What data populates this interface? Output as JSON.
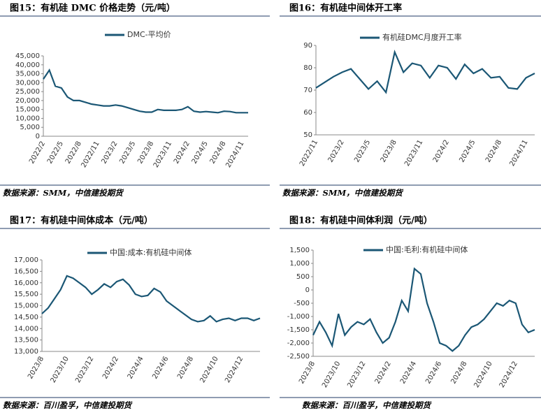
{
  "chart_data": [
    {
      "type": "line",
      "title": "图15：有机硅 DMC 价格走势（元/吨）",
      "source": "数据来源：SMM，中信建投期货",
      "x": [
        "2022/2",
        null,
        null,
        "2022/5",
        null,
        null,
        "2022/8",
        null,
        null,
        "2022/11",
        null,
        null,
        "2023/2",
        null,
        null,
        "2023/5",
        null,
        null,
        "2023/8",
        null,
        null,
        "2023/11",
        null,
        null,
        "2024/2",
        null,
        null,
        "2024/5",
        null,
        null,
        "2024/8",
        null,
        null,
        "2024/11",
        null
      ],
      "series": [
        {
          "name": "DMC-平均价",
          "color": "#1b5775",
          "values": [
            32000,
            37000,
            28000,
            27000,
            22000,
            20000,
            20000,
            19000,
            18000,
            17500,
            17000,
            17000,
            17500,
            17000,
            16000,
            15000,
            14000,
            13500,
            13500,
            15000,
            14500,
            14500,
            14500,
            15000,
            16500,
            14000,
            13500,
            13800,
            13500,
            13200,
            14000,
            13800,
            13200,
            13200,
            13200
          ]
        }
      ],
      "ylim": [
        0,
        45000
      ],
      "yticks": [
        0,
        {
          "value": 5000,
          "label": "5,000"
        },
        {
          "value": 10000,
          "label": "10,000"
        },
        {
          "value": 15000,
          "label": "15,000"
        },
        {
          "value": 20000,
          "label": "20,000"
        },
        {
          "value": 25000,
          "label": "25,000"
        },
        {
          "value": 30000,
          "label": "30,000"
        },
        {
          "value": 35000,
          "label": "35,000"
        },
        {
          "value": 40000,
          "label": "40,000"
        },
        {
          "value": 45000,
          "label": "45,000"
        }
      ],
      "grid": false
    },
    {
      "type": "line",
      "title": "图16：有机硅中间体开工率",
      "source": "数据来源：SMM，中信建投期货",
      "x": [
        "2022/11",
        null,
        null,
        "2023/2",
        null,
        null,
        "2023/5",
        null,
        null,
        "2023/8",
        null,
        null,
        "2023/11",
        null,
        null,
        "2024/2",
        null,
        null,
        "2024/5",
        null,
        null,
        "2024/8",
        null,
        null,
        "2024/11",
        null
      ],
      "series": [
        {
          "name": "有机硅DMC月度开工率",
          "color": "#1b5775",
          "values": [
            71,
            73.5,
            76,
            78,
            79.5,
            75,
            70.5,
            74,
            69,
            87,
            78,
            82,
            81,
            75.5,
            81,
            80,
            75,
            81.5,
            77.5,
            79.5,
            75.5,
            76,
            71,
            70.5,
            75.5,
            77.5
          ]
        }
      ],
      "ylim": [
        50,
        90
      ],
      "yticks": [
        50,
        60,
        70,
        80,
        90
      ],
      "grid": false
    },
    {
      "type": "line",
      "title": "图17：有机硅中间体成本（元/吨）",
      "source": "数据来源：百川盈孚，中信建投期货",
      "x": [
        "2023/8",
        null,
        null,
        null,
        "2023/10",
        null,
        null,
        null,
        "2023/12",
        null,
        null,
        null,
        "2024/2",
        null,
        null,
        null,
        "2024/4",
        null,
        null,
        null,
        "2024/6",
        null,
        null,
        null,
        "2024/8",
        null,
        null,
        null,
        "2024/10",
        null,
        null,
        null,
        "2024/12",
        null,
        null,
        null
      ],
      "series": [
        {
          "name": "中国:成本:有机硅中间体",
          "color": "#1b5775",
          "values": [
            14650,
            14900,
            15300,
            15700,
            16300,
            16200,
            16000,
            15800,
            15500,
            15700,
            15950,
            15800,
            16050,
            16150,
            15900,
            15500,
            15400,
            15450,
            15750,
            15600,
            15200,
            15000,
            14800,
            14600,
            14400,
            14300,
            14350,
            14550,
            14300,
            14400,
            14450,
            14350,
            14450,
            14450,
            14350,
            14450
          ]
        }
      ],
      "ylim": [
        13000,
        17000
      ],
      "yticks": [
        {
          "value": 13000,
          "label": "13,000"
        },
        {
          "value": 13500,
          "label": "13,500"
        },
        {
          "value": 14000,
          "label": "14,000"
        },
        {
          "value": 14500,
          "label": "14,500"
        },
        {
          "value": 15000,
          "label": "15,000"
        },
        {
          "value": 15500,
          "label": "15,500"
        },
        {
          "value": 16000,
          "label": "16,000"
        },
        {
          "value": 16500,
          "label": "16,500"
        },
        {
          "value": 17000,
          "label": "17,000"
        }
      ],
      "grid": false
    },
    {
      "type": "line",
      "title": "图18：有机硅中间体利润（元/吨）",
      "source": "数据来源：百川盈孚，中信建投期货",
      "x": [
        "2023/8",
        null,
        null,
        null,
        "2023/10",
        null,
        null,
        null,
        "2023/12",
        null,
        null,
        null,
        "2024/2",
        null,
        null,
        null,
        "2024/4",
        null,
        null,
        null,
        "2024/6",
        null,
        null,
        null,
        "2024/8",
        null,
        null,
        null,
        "2024/10",
        null,
        null,
        null,
        "2024/12",
        null,
        null,
        null
      ],
      "series": [
        {
          "name": "中国:毛利:有机硅中间体",
          "color": "#1b5775",
          "values": [
            -1700,
            -1200,
            -1600,
            -2100,
            -900,
            -1700,
            -1400,
            -1200,
            -1300,
            -1100,
            -1600,
            -2000,
            -1800,
            -1200,
            -400,
            -800,
            800,
            600,
            -500,
            -1200,
            -2000,
            -2100,
            -2300,
            -2100,
            -1700,
            -1400,
            -1300,
            -1100,
            -800,
            -500,
            -600,
            -400,
            -500,
            -1300,
            -1600,
            -1500
          ]
        }
      ],
      "ylim": [
        -2500,
        1500
      ],
      "yticks": [
        {
          "value": -2500,
          "label": "-2,500"
        },
        {
          "value": -2000,
          "label": "-2,000"
        },
        {
          "value": -1500,
          "label": "-1,500"
        },
        {
          "value": -1000,
          "label": "-1,000"
        },
        -500,
        0,
        500,
        {
          "value": 1000,
          "label": "1,000"
        },
        {
          "value": 1500,
          "label": "1,500"
        }
      ],
      "grid": false
    }
  ]
}
